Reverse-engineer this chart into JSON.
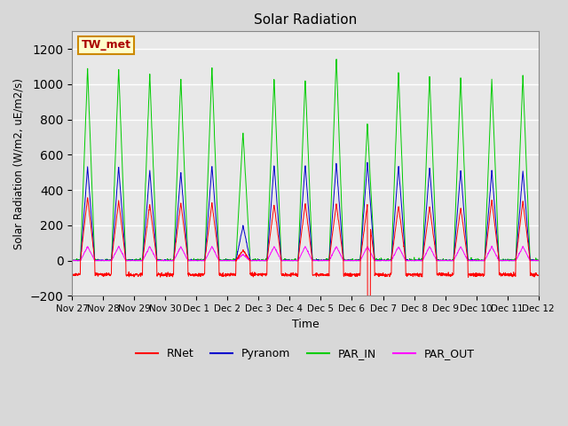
{
  "title": "Solar Radiation",
  "ylabel": "Solar Radiation (W/m2, uE/m2/s)",
  "xlabel": "Time",
  "ylim": [
    -200,
    1300
  ],
  "yticks": [
    -200,
    0,
    200,
    400,
    600,
    800,
    1000,
    1200
  ],
  "xlim_start": 0,
  "xlim_end": 15,
  "station_label": "TW_met",
  "bg_color": "#d8d8d8",
  "plot_bg_color": "#e8e8e8",
  "grid_color": "white",
  "colors": {
    "RNet": "#ff0000",
    "Pyranom": "#0000cc",
    "PAR_IN": "#00cc00",
    "PAR_OUT": "#ff00ff"
  },
  "x_tick_labels": [
    "Nov 27",
    "Nov 28",
    "Nov 29",
    "Nov 30",
    "Dec 1",
    "Dec 2",
    "Dec 3",
    "Dec 4",
    "Dec 5",
    "Dec 6",
    "Dec 7",
    "Dec 8",
    "Dec 9",
    "Dec 10",
    "Dec 11",
    "Dec 12"
  ],
  "x_tick_positions": [
    0,
    1,
    2,
    3,
    4,
    5,
    6,
    7,
    8,
    9,
    10,
    11,
    12,
    13,
    14,
    15
  ],
  "day_peaks_PAR_IN": [
    1090,
    1090,
    1060,
    1040,
    1100,
    730,
    1040,
    1040,
    1160,
    780,
    1080,
    1050,
    1040,
    1030,
    1050
  ],
  "day_peaks_Pyranom": [
    530,
    530,
    510,
    500,
    540,
    200,
    545,
    545,
    555,
    560,
    540,
    530,
    510,
    510,
    510
  ],
  "day_peaks_RNet": [
    360,
    340,
    320,
    330,
    330,
    60,
    320,
    325,
    325,
    320,
    310,
    305,
    300,
    345,
    340
  ],
  "day_peaks_PAR_OUT": [
    80,
    80,
    80,
    80,
    80,
    35,
    80,
    80,
    80,
    80,
    80,
    80,
    80,
    80,
    80
  ],
  "night_RNet": -80,
  "rnet_big_dip_day": 9,
  "rnet_big_dip_val": -200
}
